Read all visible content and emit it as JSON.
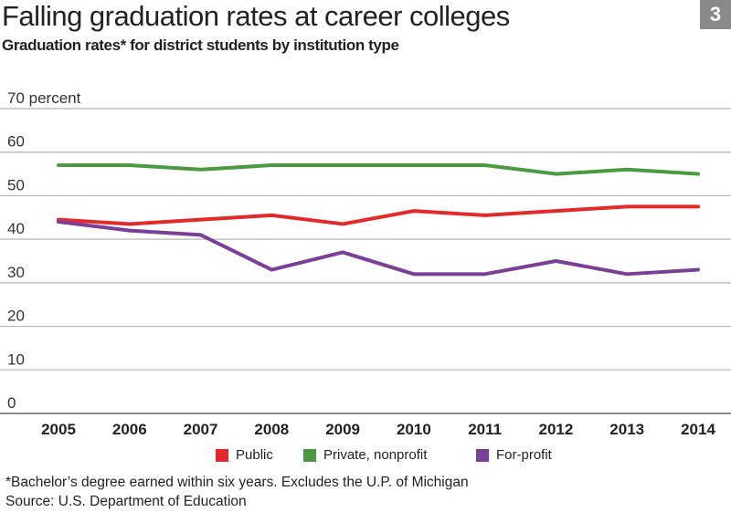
{
  "title": "Falling graduation rates at career colleges",
  "subtitle": "Graduation rates* for district students by institution type",
  "badge": "3",
  "footnote": "*Bachelor’s degree earned within six years. Excludes the U.P. of Michigan",
  "source": "Source: U.S. Department of Education",
  "chart_data": {
    "type": "line",
    "title": "Falling graduation rates at career colleges",
    "subtitle": "Graduation rates* for district students by institution type",
    "ylabel_unit": "percent",
    "x": [
      "2005",
      "2006",
      "2007",
      "2008",
      "2009",
      "2010",
      "2011",
      "2012",
      "2013",
      "2014"
    ],
    "ylim": [
      0,
      70
    ],
    "yticks": [
      0,
      10,
      20,
      30,
      40,
      50,
      60,
      70
    ],
    "grid": true,
    "legend_position": "bottom",
    "series": [
      {
        "name": "Public",
        "color": "#e32a2a",
        "values": [
          44.5,
          43.5,
          44.5,
          45.5,
          43.5,
          46.5,
          45.5,
          46.5,
          47.5,
          47.5
        ]
      },
      {
        "name": "Private, nonprofit",
        "color": "#4a9a41",
        "values": [
          57,
          57,
          56,
          57,
          57,
          57,
          57,
          55,
          56,
          55
        ]
      },
      {
        "name": "For-profit",
        "color": "#7b3f98",
        "values": [
          44,
          42,
          41,
          33,
          37,
          32,
          32,
          35,
          32,
          33
        ]
      }
    ]
  }
}
